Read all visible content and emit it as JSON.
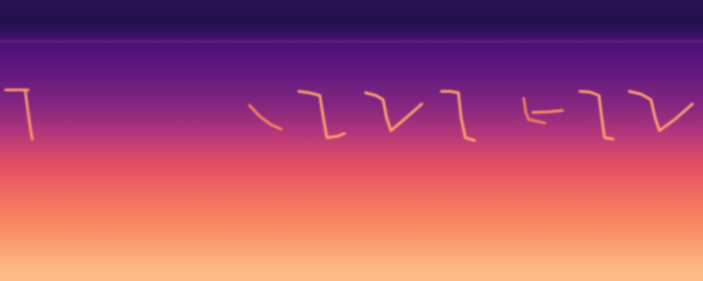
{
  "chart_data": {
    "type": "spectrogram",
    "tick_labels": false,
    "xlim": [
      0,
      1
    ],
    "ylim": [
      0,
      1
    ],
    "color_range": [
      0,
      1
    ],
    "band_levels": [
      0.87,
      0.84,
      0.8,
      0.77,
      0.74,
      0.71,
      0.68,
      0.65,
      0.61,
      0.56,
      0.5,
      0.44,
      0.39,
      0.35,
      0.31,
      0.28,
      0.25,
      0.2,
      0.14,
      0.16
    ],
    "calls": [
      {
        "x": [
          0.008,
          0.04
        ],
        "y": [
          0.68,
          0.68
        ],
        "level": 0.78
      },
      {
        "x": [
          0.036,
          0.04,
          0.044,
          0.046
        ],
        "y": [
          0.675,
          0.6,
          0.53,
          0.505
        ],
        "level": 0.78
      },
      {
        "x": [
          0.355,
          0.37,
          0.385,
          0.4
        ],
        "y": [
          0.625,
          0.585,
          0.557,
          0.54
        ],
        "level": 0.74
      },
      {
        "x": [
          0.425,
          0.44,
          0.455,
          0.46,
          0.465,
          0.48,
          0.49
        ],
        "y": [
          0.675,
          0.67,
          0.66,
          0.58,
          0.51,
          0.515,
          0.525
        ],
        "level": 0.8
      },
      {
        "x": [
          0.52,
          0.535,
          0.545,
          0.55,
          0.556,
          0.575,
          0.6
        ],
        "y": [
          0.67,
          0.66,
          0.645,
          0.58,
          0.535,
          0.575,
          0.63
        ],
        "level": 0.8
      },
      {
        "x": [
          0.628,
          0.64,
          0.652,
          0.656,
          0.662,
          0.675
        ],
        "y": [
          0.675,
          0.675,
          0.67,
          0.58,
          0.51,
          0.5
        ],
        "level": 0.8
      },
      {
        "x": [
          0.745,
          0.748,
          0.752,
          0.775
        ],
        "y": [
          0.65,
          0.6,
          0.575,
          0.562
        ],
        "level": 0.72
      },
      {
        "x": [
          0.758,
          0.78,
          0.8
        ],
        "y": [
          0.6,
          0.602,
          0.607
        ],
        "level": 0.76
      },
      {
        "x": [
          0.825,
          0.84,
          0.852,
          0.856,
          0.86,
          0.872
        ],
        "y": [
          0.675,
          0.672,
          0.66,
          0.58,
          0.51,
          0.505
        ],
        "level": 0.8
      },
      {
        "x": [
          0.895,
          0.912,
          0.926,
          0.932,
          0.938,
          0.96,
          0.985
        ],
        "y": [
          0.675,
          0.665,
          0.645,
          0.58,
          0.535,
          0.575,
          0.63
        ],
        "level": 0.8
      },
      {
        "x": [
          0.0,
          1.0
        ],
        "y": [
          0.853,
          0.853
        ],
        "level": 0.32
      }
    ]
  }
}
